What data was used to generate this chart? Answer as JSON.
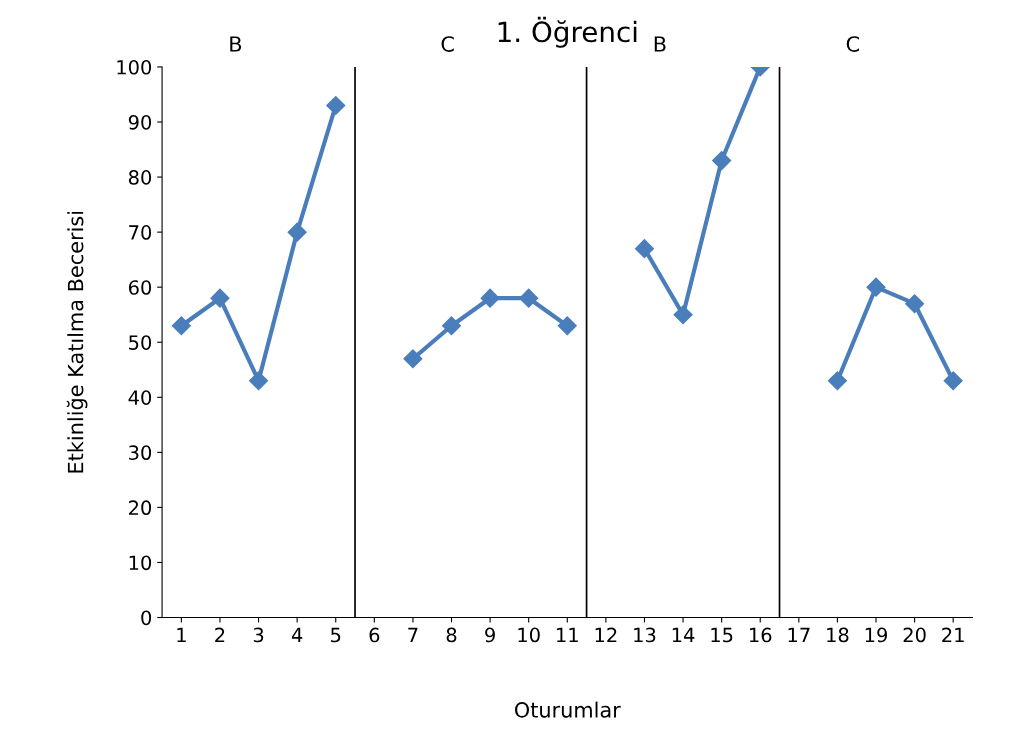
{
  "chart_data": {
    "type": "line",
    "title": "1. Öğrenci",
    "xlabel": "Oturumlar",
    "ylabel": "Etkinliğe Katılma Becerisi",
    "x": [
      1,
      2,
      3,
      4,
      5,
      6,
      7,
      8,
      9,
      10,
      11,
      12,
      13,
      14,
      15,
      16,
      17,
      18,
      19,
      20,
      21
    ],
    "series": [
      {
        "color": "#4a7ebb",
        "values": [
          53,
          58,
          43,
          70,
          93,
          null,
          47,
          53,
          58,
          58,
          53,
          null,
          67,
          55,
          83,
          100,
          null,
          43,
          60,
          57,
          43
        ]
      }
    ],
    "xlim": [
      0.5,
      21.5
    ],
    "xticks": [
      1,
      2,
      3,
      4,
      5,
      6,
      7,
      8,
      9,
      10,
      11,
      12,
      13,
      14,
      15,
      16,
      17,
      18,
      19,
      20,
      21
    ],
    "ylim": [
      0,
      100
    ],
    "yticks": [
      0,
      10,
      20,
      30,
      40,
      50,
      60,
      70,
      80,
      90,
      100
    ],
    "ref_lines": [
      {
        "axis": "x",
        "value": 5.5,
        "color": "#000000"
      },
      {
        "axis": "x",
        "value": 11.5,
        "color": "#000000"
      },
      {
        "axis": "x",
        "value": 16.5,
        "color": "#000000"
      }
    ],
    "annotations": [
      "B",
      "C",
      "B",
      "C"
    ],
    "marker": "diamond",
    "line_style": "solid",
    "grid": false,
    "legend": false
  }
}
